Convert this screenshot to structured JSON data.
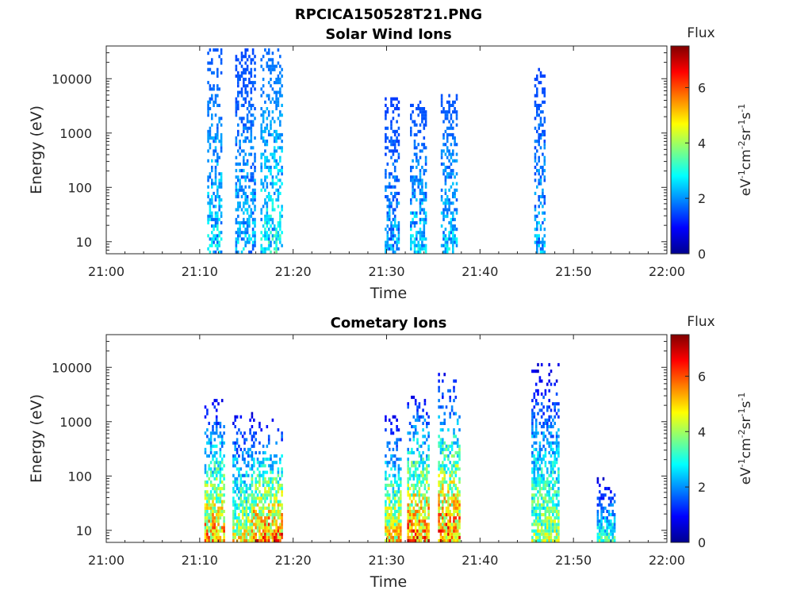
{
  "figure": {
    "title": "RPCICA150528T21.PNG"
  },
  "chart_data": [
    {
      "type": "heatmap",
      "title": "Solar Wind Ions",
      "xlabel": "Time",
      "ylabel": "Energy (eV)",
      "xticks": [
        "21:00",
        "21:10",
        "21:20",
        "21:30",
        "21:40",
        "21:50",
        "22:00"
      ],
      "xlim_minutes": [
        0,
        60
      ],
      "yscale": "log",
      "ylim": [
        6,
        40000
      ],
      "yticks": [
        10,
        100,
        1000,
        10000
      ],
      "ytick_labels": [
        "10",
        "100",
        "1000",
        "10000"
      ],
      "colorbar": {
        "label_top": "Flux",
        "unit_label": "eV-1cm-2sr-1s-1",
        "ticks": [
          "0",
          "2",
          "4",
          "6"
        ],
        "range": [
          0,
          7.5
        ],
        "colormap": "jet"
      },
      "time_of_activity_minutes": [
        {
          "t_start": 10.8,
          "t_end": 12.2,
          "e_min": 6,
          "e_max": 35000,
          "flux_peak": 3.5
        },
        {
          "t_start": 13.8,
          "t_end": 15.8,
          "e_min": 6,
          "e_max": 35000,
          "flux_peak": 3.2
        },
        {
          "t_start": 16.5,
          "t_end": 18.8,
          "e_min": 6,
          "e_max": 35000,
          "flux_peak": 3.8
        },
        {
          "t_start": 29.8,
          "t_end": 31.2,
          "e_min": 6,
          "e_max": 4500,
          "flux_peak": 3.0
        },
        {
          "t_start": 32.5,
          "t_end": 34.2,
          "e_min": 6,
          "e_max": 3500,
          "flux_peak": 3.3
        },
        {
          "t_start": 35.8,
          "t_end": 37.5,
          "e_min": 6,
          "e_max": 5000,
          "flux_peak": 3.4
        },
        {
          "t_start": 45.8,
          "t_end": 47.0,
          "e_min": 6,
          "e_max": 15000,
          "flux_peak": 3.1
        }
      ]
    },
    {
      "type": "heatmap",
      "title": "Cometary Ions",
      "xlabel": "Time",
      "ylabel": "Energy (eV)",
      "xticks": [
        "21:00",
        "21:10",
        "21:20",
        "21:30",
        "21:40",
        "21:50",
        "22:00"
      ],
      "xlim_minutes": [
        0,
        60
      ],
      "yscale": "log",
      "ylim": [
        6,
        40000
      ],
      "yticks": [
        10,
        100,
        1000,
        10000
      ],
      "ytick_labels": [
        "10",
        "100",
        "1000",
        "10000"
      ],
      "colorbar": {
        "label_top": "Flux",
        "unit_label": "eV-1cm-2sr-1s-1",
        "ticks": [
          "0",
          "2",
          "4",
          "6"
        ],
        "range": [
          0,
          7.5
        ],
        "colormap": "jet"
      },
      "time_of_activity_minutes": [
        {
          "t_start": 10.5,
          "t_end": 12.5,
          "e_min": 6,
          "e_max": 2500,
          "flux_peak": 6.5
        },
        {
          "t_start": 13.5,
          "t_end": 15.5,
          "e_min": 6,
          "e_max": 1500,
          "flux_peak": 5.5
        },
        {
          "t_start": 15.5,
          "t_end": 18.8,
          "e_min": 6,
          "e_max": 1000,
          "flux_peak": 7.0
        },
        {
          "t_start": 29.8,
          "t_end": 31.5,
          "e_min": 6,
          "e_max": 1200,
          "flux_peak": 6.0
        },
        {
          "t_start": 32.2,
          "t_end": 34.5,
          "e_min": 6,
          "e_max": 3000,
          "flux_peak": 7.0
        },
        {
          "t_start": 35.5,
          "t_end": 37.8,
          "e_min": 6,
          "e_max": 8000,
          "flux_peak": 7.0
        },
        {
          "t_start": 45.5,
          "t_end": 48.5,
          "e_min": 6,
          "e_max": 11000,
          "flux_peak": 5.0
        },
        {
          "t_start": 52.5,
          "t_end": 54.5,
          "e_min": 6,
          "e_max": 90,
          "flux_peak": 4.0
        }
      ]
    }
  ]
}
